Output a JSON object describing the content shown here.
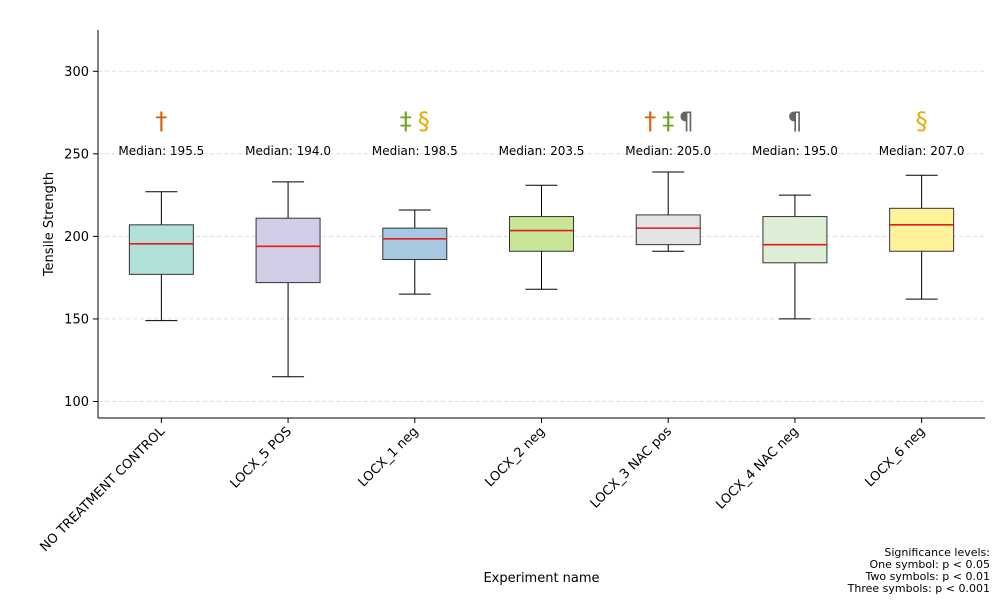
{
  "chart_data": {
    "type": "box",
    "xlabel": "Experiment name",
    "ylabel": "Tensile Strength",
    "ylim": [
      90,
      325
    ],
    "yticks": [
      100,
      150,
      200,
      250,
      300
    ],
    "grid": "y-dashed",
    "median_prefix": "Median: ",
    "categories": [
      "NO TREATMENT CONTROL",
      "LOCX_5 POS",
      "LOCX_1 neg",
      "LOCX_2 neg",
      "LOCX_3 NAC pos",
      "LOCX_4 NAC neg",
      "LOCX_6 neg"
    ],
    "boxes": [
      {
        "label": "NO TREATMENT CONTROL",
        "whisker_low": 149,
        "q1": 177,
        "median": 195.5,
        "q3": 207,
        "whisker_high": 227,
        "median_text": "195.5",
        "color": "#b0e0d8",
        "symbols": [
          {
            "text": "†",
            "color": "#d95f02"
          }
        ]
      },
      {
        "label": "LOCX_5 POS",
        "whisker_low": 115,
        "q1": 172,
        "median": 194.0,
        "q3": 211,
        "whisker_high": 233,
        "median_text": "194.0",
        "color": "#d2cce6",
        "symbols": []
      },
      {
        "label": "LOCX_1 neg",
        "whisker_low": 165,
        "q1": 186,
        "median": 198.5,
        "q3": 205,
        "whisker_high": 216,
        "median_text": "198.5",
        "color": "#a6c8e0",
        "symbols": [
          {
            "text": "‡",
            "color": "#66a61e"
          },
          {
            "text": "§",
            "color": "#e6ab02"
          }
        ]
      },
      {
        "label": "LOCX_2 neg",
        "whisker_low": 168,
        "q1": 191,
        "median": 203.5,
        "q3": 212,
        "whisker_high": 231,
        "median_text": "203.5",
        "color": "#c9e697",
        "symbols": []
      },
      {
        "label": "LOCX_3 NAC pos",
        "whisker_low": 191,
        "q1": 195,
        "median": 205.0,
        "q3": 213,
        "whisker_high": 239,
        "median_text": "205.0",
        "color": "#e4e4e4",
        "symbols": [
          {
            "text": "†",
            "color": "#d95f02"
          },
          {
            "text": "‡",
            "color": "#66a61e"
          },
          {
            "text": "¶",
            "color": "#666666"
          }
        ]
      },
      {
        "label": "LOCX_4 NAC neg",
        "whisker_low": 150,
        "q1": 184,
        "median": 195.0,
        "q3": 212,
        "whisker_high": 225,
        "median_text": "195.0",
        "color": "#dcefd6",
        "symbols": [
          {
            "text": "¶",
            "color": "#666666"
          }
        ]
      },
      {
        "label": "LOCX_6 neg",
        "whisker_low": 162,
        "q1": 191,
        "median": 207.0,
        "q3": 217,
        "whisker_high": 237,
        "median_text": "207.0",
        "color": "#fff299",
        "symbols": [
          {
            "text": "§",
            "color": "#e6ab02"
          }
        ]
      }
    ],
    "median_line_color": "#e41a1c"
  },
  "note": {
    "title": "Significance levels:",
    "lines": [
      "One symbol: p < 0.05",
      "Two symbols: p < 0.01",
      "Three symbols: p < 0.001"
    ]
  }
}
